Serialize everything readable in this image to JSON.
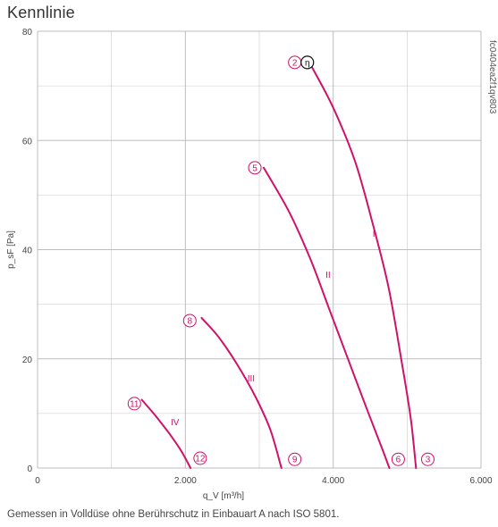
{
  "title": "Kennlinie",
  "footnote": "Gemessen in Volldüse ohne Berührschutz in Einbauart A nach ISO 5801.",
  "code": "fc0404ea2f1qv803",
  "colors": {
    "curve": "#d0116a",
    "grid": "#bdbdbd",
    "eta_marker": "#111111"
  },
  "chart_data": {
    "type": "line",
    "title": "Kennlinie",
    "xlabel": "q_V [m³/h]",
    "ylabel": "p_sF [Pa]",
    "xlim": [
      0,
      6000
    ],
    "ylim": [
      0,
      80
    ],
    "grid": true,
    "x_ticks": [
      0,
      2000,
      4000,
      6000
    ],
    "x_tick_labels": [
      "0",
      "2.000",
      "4.000",
      "6.000"
    ],
    "y_ticks": [
      0,
      20,
      40,
      60,
      80
    ],
    "y_tick_labels": [
      "0",
      "20",
      "40",
      "60",
      "80"
    ],
    "series": [
      {
        "name": "I",
        "points": [
          [
            3690,
            74
          ],
          [
            4000,
            66
          ],
          [
            4300,
            56
          ],
          [
            4550,
            44
          ],
          [
            4750,
            33
          ],
          [
            4920,
            20
          ],
          [
            5050,
            9
          ],
          [
            5120,
            0
          ]
        ]
      },
      {
        "name": "II",
        "points": [
          [
            3060,
            55
          ],
          [
            3400,
            47
          ],
          [
            3700,
            38
          ],
          [
            3950,
            29
          ],
          [
            4200,
            20
          ],
          [
            4450,
            11
          ],
          [
            4650,
            4
          ],
          [
            4760,
            0
          ]
        ]
      },
      {
        "name": "III",
        "points": [
          [
            2220,
            27.5
          ],
          [
            2450,
            24
          ],
          [
            2700,
            19
          ],
          [
            2950,
            13
          ],
          [
            3150,
            7
          ],
          [
            3300,
            0
          ]
        ]
      },
      {
        "name": "IV",
        "points": [
          [
            1410,
            12.5
          ],
          [
            1600,
            9.5
          ],
          [
            1800,
            6
          ],
          [
            1950,
            3
          ],
          [
            2070,
            0
          ]
        ]
      }
    ],
    "series_labels": [
      {
        "text": "I",
        "x": 4550,
        "y": 43
      },
      {
        "text": "II",
        "x": 3930,
        "y": 35.5
      },
      {
        "text": "III",
        "x": 2890,
        "y": 16.5
      },
      {
        "text": "IV",
        "x": 1860,
        "y": 8.5
      }
    ],
    "operating_points": [
      {
        "label": "2",
        "x": 3480,
        "y": 74.3
      },
      {
        "label": "5",
        "x": 2940,
        "y": 55
      },
      {
        "label": "8",
        "x": 2060,
        "y": 27
      },
      {
        "label": "11",
        "x": 1310,
        "y": 11.8
      },
      {
        "label": "12",
        "x": 2200,
        "y": 1.8
      },
      {
        "label": "9",
        "x": 3480,
        "y": 1.6
      },
      {
        "label": "6",
        "x": 4880,
        "y": 1.6
      },
      {
        "label": "3",
        "x": 5280,
        "y": 1.6
      }
    ],
    "eta_marker": {
      "label": "η",
      "x": 3650,
      "y": 74.3
    }
  }
}
